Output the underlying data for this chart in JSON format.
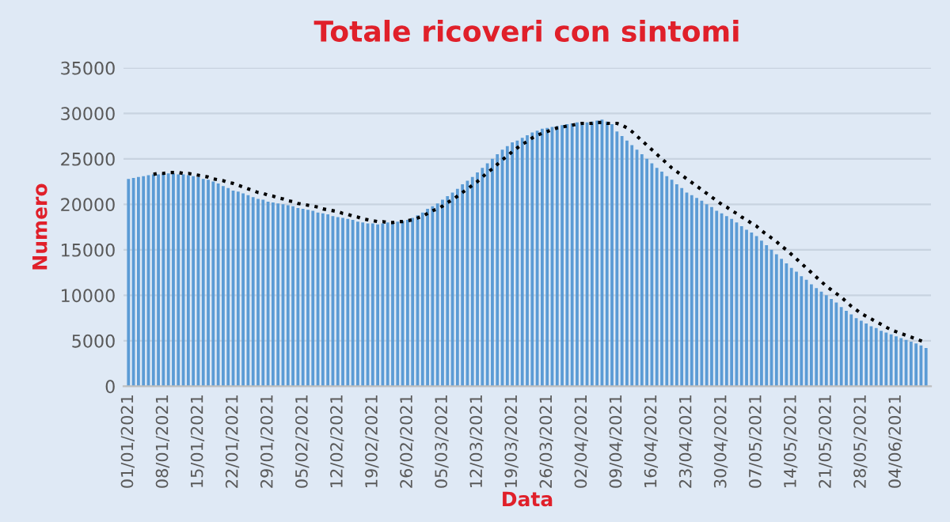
{
  "chart_data": {
    "type": "bar",
    "title": "Totale ricoveri con sintomi",
    "xlabel": "Data",
    "ylabel": "Numero",
    "categories": [
      "01/01/2021",
      null,
      null,
      null,
      null,
      null,
      null,
      "08/01/2021",
      null,
      null,
      null,
      null,
      null,
      null,
      "15/01/2021",
      null,
      null,
      null,
      null,
      null,
      null,
      "22/01/2021",
      null,
      null,
      null,
      null,
      null,
      null,
      "29/01/2021",
      null,
      null,
      null,
      null,
      null,
      null,
      "05/02/2021",
      null,
      null,
      null,
      null,
      null,
      null,
      "12/02/2021",
      null,
      null,
      null,
      null,
      null,
      null,
      "19/02/2021",
      null,
      null,
      null,
      null,
      null,
      null,
      "26/02/2021",
      null,
      null,
      null,
      null,
      null,
      null,
      "05/03/2021",
      null,
      null,
      null,
      null,
      null,
      null,
      "12/03/2021",
      null,
      null,
      null,
      null,
      null,
      null,
      "19/03/2021",
      null,
      null,
      null,
      null,
      null,
      null,
      "26/03/2021",
      null,
      null,
      null,
      null,
      null,
      null,
      "02/04/2021",
      null,
      null,
      null,
      null,
      null,
      null,
      "09/04/2021",
      null,
      null,
      null,
      null,
      null,
      null,
      "16/04/2021",
      null,
      null,
      null,
      null,
      null,
      null,
      "23/04/2021",
      null,
      null,
      null,
      null,
      null,
      null,
      "30/04/2021",
      null,
      null,
      null,
      null,
      null,
      null,
      "07/05/2021",
      null,
      null,
      null,
      null,
      null,
      null,
      "14/05/2021",
      null,
      null,
      null,
      null,
      null,
      null,
      "21/05/2021",
      null,
      null,
      null,
      null,
      null,
      null,
      "28/05/2021",
      null,
      null,
      null,
      null,
      null,
      null,
      "04/06/2021",
      null,
      null,
      null,
      null,
      null,
      null
    ],
    "series": [
      {
        "color": "#5b9bd5",
        "values": [
          22800,
          22900,
          23000,
          23100,
          23200,
          23300,
          23300,
          23400,
          23400,
          23400,
          23300,
          23300,
          23200,
          23100,
          23000,
          22800,
          22700,
          22500,
          22300,
          22000,
          21800,
          21500,
          21400,
          21200,
          21000,
          20800,
          20600,
          20500,
          20300,
          20200,
          20100,
          20000,
          19900,
          19800,
          19600,
          19500,
          19400,
          19300,
          19100,
          19000,
          18900,
          18700,
          18600,
          18500,
          18400,
          18300,
          18100,
          18000,
          17900,
          17900,
          17800,
          17900,
          18000,
          18000,
          18100,
          18200,
          18300,
          18500,
          18800,
          19100,
          19500,
          19800,
          20100,
          20500,
          20900,
          21300,
          21700,
          22200,
          22600,
          23000,
          23500,
          24000,
          24500,
          25000,
          25500,
          26000,
          26400,
          26800,
          27000,
          27300,
          27600,
          27900,
          28100,
          28300,
          28400,
          28500,
          28600,
          28700,
          28800,
          28900,
          29000,
          29000,
          29000,
          29100,
          29200,
          29300,
          29100,
          28800,
          28000,
          27500,
          27000,
          26500,
          26000,
          25500,
          25000,
          24500,
          24000,
          23600,
          23100,
          22700,
          22200,
          21800,
          21300,
          21000,
          20700,
          20400,
          20000,
          19700,
          19300,
          19000,
          18700,
          18400,
          18000,
          17600,
          17200,
          16900,
          16500,
          16000,
          15500,
          15000,
          14500,
          14000,
          13500,
          13000,
          12600,
          12100,
          11700,
          11200,
          10800,
          10400,
          10000,
          9600,
          9200,
          8700,
          8300,
          7900,
          7500,
          7200,
          6900,
          6600,
          6400,
          6100,
          5900,
          5700,
          5500,
          5300,
          5100,
          4900,
          4700,
          4500,
          4200
        ]
      },
      {
        "type": "line",
        "color": "#000000",
        "line_style": "dotted",
        "values": [
          null,
          null,
          null,
          null,
          null,
          23300,
          23400,
          23400,
          23500,
          23500,
          23500,
          23400,
          23400,
          23300,
          23200,
          23100,
          23000,
          22800,
          22700,
          22600,
          22400,
          22300,
          22100,
          21900,
          21700,
          21500,
          21300,
          21200,
          21000,
          20900,
          20700,
          20600,
          20400,
          20300,
          20100,
          20000,
          19900,
          19800,
          19700,
          19500,
          19400,
          19300,
          19200,
          19000,
          18900,
          18700,
          18600,
          18400,
          18300,
          18200,
          18100,
          18100,
          18000,
          18000,
          18100,
          18100,
          18200,
          18300,
          18500,
          18700,
          19000,
          19300,
          19500,
          19800,
          20200,
          20500,
          20900,
          21300,
          21700,
          22100,
          22500,
          23000,
          23500,
          23900,
          24400,
          24900,
          25300,
          25800,
          26200,
          26600,
          26900,
          27300,
          27600,
          27800,
          28000,
          28200,
          28400,
          28500,
          28600,
          28700,
          28800,
          28900,
          28900,
          28900,
          29000,
          29000,
          28900,
          28900,
          28900,
          28700,
          28400,
          28000,
          27500,
          27000,
          26500,
          26000,
          25500,
          25000,
          24500,
          24000,
          23600,
          23200,
          22800,
          22400,
          22000,
          21600,
          21200,
          20800,
          20400,
          20000,
          19700,
          19300,
          19000,
          18600,
          18300,
          17900,
          17600,
          17100,
          16700,
          16300,
          15900,
          15400,
          15000,
          14500,
          14000,
          13500,
          13000,
          12500,
          12000,
          11500,
          11000,
          10600,
          10200,
          9800,
          9300,
          8800,
          8400,
          8000,
          7700,
          7400,
          7100,
          6800,
          6500,
          6200,
          6000,
          5800,
          5600,
          5400,
          5200,
          5000,
          4800
        ]
      }
    ],
    "ylim": [
      0,
      35000
    ],
    "yticks": [
      0,
      5000,
      10000,
      15000,
      20000,
      25000,
      30000,
      35000
    ],
    "grid": "y"
  }
}
